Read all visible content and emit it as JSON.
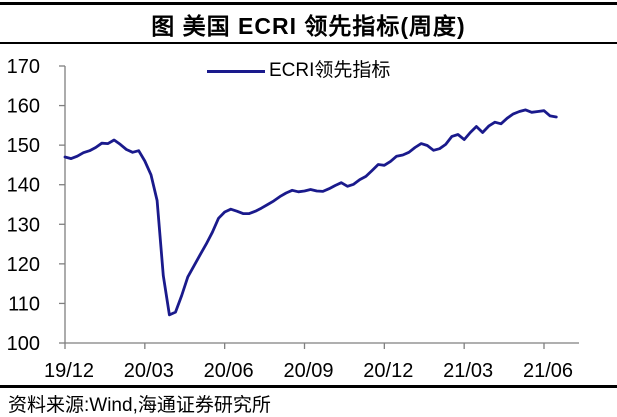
{
  "header": {
    "title": "图 美国 ECRI 领先指标(周度)"
  },
  "footer": {
    "source": "资料来源:Wind,海通证券研究所"
  },
  "chart_data": {
    "type": "line",
    "title": "图 美国 ECRI 领先指标(周度)",
    "legend": {
      "label": "ECRI领先指标",
      "position": "top-center"
    },
    "x_frequency": "weekly",
    "x_tick_labels": [
      "19/12",
      "20/03",
      "20/06",
      "20/09",
      "20/12",
      "21/03",
      "21/06"
    ],
    "x_tick_week_indices": [
      0,
      13,
      26,
      39,
      52,
      65,
      78
    ],
    "y_ticks": [
      100,
      110,
      120,
      130,
      140,
      150,
      160,
      170
    ],
    "ylim": [
      100,
      170
    ],
    "grid": false,
    "colors": {
      "line": "#1a1a8c",
      "axis": "#7f7f7f",
      "text": "#000000",
      "rule": "#000000"
    },
    "series": [
      {
        "name": "ECRI领先指标",
        "start_week_label": "19/12",
        "values": [
          147.0,
          146.6,
          147.2,
          148.1,
          148.6,
          149.4,
          150.5,
          150.4,
          151.3,
          150.2,
          148.9,
          148.2,
          148.6,
          146.0,
          142.5,
          136.0,
          117.0,
          107.1,
          107.8,
          112.0,
          116.7,
          119.5,
          122.3,
          125.0,
          128.0,
          131.5,
          133.1,
          133.8,
          133.3,
          132.7,
          132.7,
          133.3,
          134.1,
          135.0,
          135.9,
          137.0,
          137.9,
          138.6,
          138.2,
          138.4,
          138.8,
          138.4,
          138.3,
          139.0,
          139.8,
          140.5,
          139.6,
          140.1,
          141.3,
          142.1,
          143.6,
          145.1,
          144.9,
          145.9,
          147.2,
          147.5,
          148.2,
          149.4,
          150.4,
          149.9,
          148.7,
          149.1,
          150.2,
          152.2,
          152.7,
          151.4,
          153.2,
          154.7,
          153.2,
          154.8,
          155.8,
          155.4,
          156.8,
          157.9,
          158.5,
          158.9,
          158.3,
          158.5,
          158.7,
          157.4,
          157.1
        ]
      }
    ]
  }
}
